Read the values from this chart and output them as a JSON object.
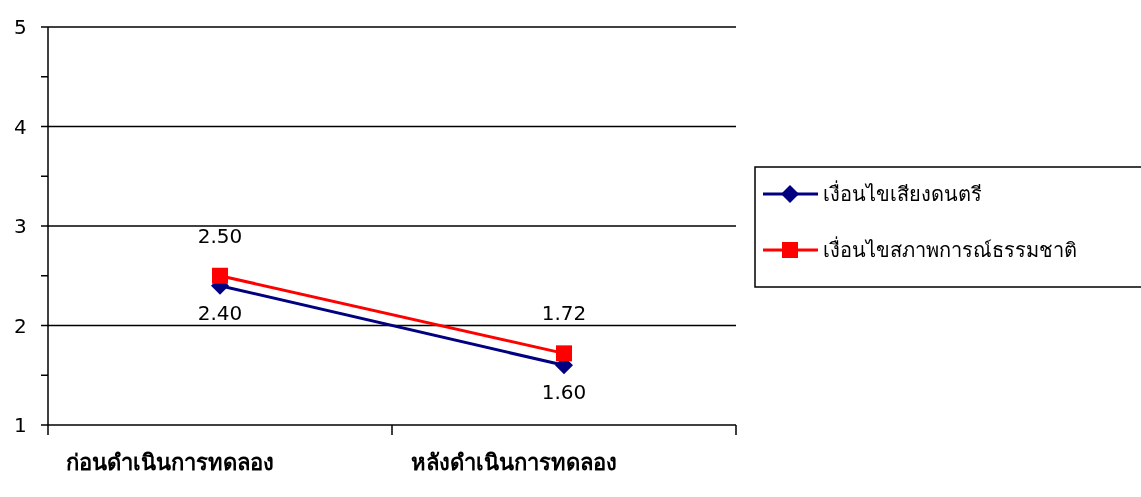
{
  "chart_data": {
    "type": "line",
    "categories": [
      "ก่อนดำเนินการทดลอง",
      "หลังดำเนินการทดลอง"
    ],
    "series": [
      {
        "name": "เงื่อนไขเสียงดนตรี",
        "color": "#000080",
        "values": [
          2.4,
          1.6
        ],
        "value_labels": [
          "2.40",
          "1.60"
        ],
        "marker": "diamond"
      },
      {
        "name": "เงื่อนไขสภาพการณ์ธรรมชาติ",
        "color": "#ff0000",
        "values": [
          2.5,
          1.72
        ],
        "value_labels": [
          "2.50",
          "1.72"
        ],
        "marker": "square"
      }
    ],
    "ylim": [
      1,
      5
    ],
    "yticks": [
      1,
      {
        "value": 1.5,
        "label": null
      },
      2,
      {
        "value": 2.5,
        "label": null
      },
      3,
      {
        "value": 3.5,
        "label": null
      },
      4,
      {
        "value": 4.5,
        "label": null
      },
      5
    ],
    "grid": "y",
    "legend": "right",
    "line_style": "solid"
  }
}
